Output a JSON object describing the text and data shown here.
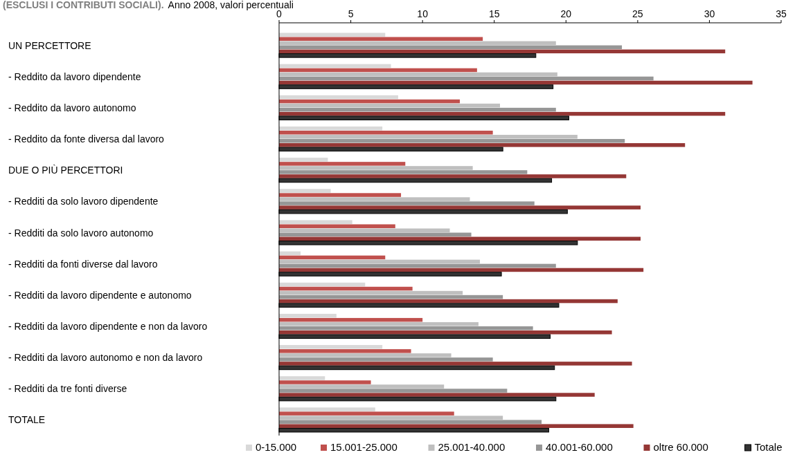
{
  "chart_data": {
    "type": "bar",
    "orientation": "horizontal",
    "title": "(ESCLUSI I CONTRIBUTI SOCIALI).",
    "subtitle": "Anno 2008, valori percentuali",
    "categories": [
      "UN PERCETTORE",
      "- Reddito da lavoro dipendente",
      "- Reddito da lavoro autonomo",
      "- Reddito da fonte diversa dal lavoro",
      "DUE O PIÙ PERCETTORI",
      "- Redditi da solo lavoro dipendente",
      "- Redditi da solo lavoro autonomo",
      "- Redditi da fonti diverse dal lavoro",
      "- Redditi da lavoro dipendente e autonomo",
      "- Redditi da lavoro dipendente e non da lavoro",
      "- Redditi da lavoro autonomo e non da lavoro",
      "- Redditi da tre fonti diverse",
      "TOTALE"
    ],
    "series": [
      {
        "name": "0-15.000",
        "color": "#d9d9d9",
        "values": [
          7.4,
          7.8,
          8.3,
          7.2,
          3.4,
          3.6,
          5.1,
          1.5,
          6.0,
          4.0,
          7.2,
          3.2,
          6.7
        ]
      },
      {
        "name": "15.001-25.000",
        "color": "#c0504d",
        "values": [
          14.2,
          13.8,
          12.6,
          14.9,
          8.8,
          8.5,
          8.1,
          7.4,
          9.3,
          10.0,
          9.2,
          6.4,
          12.2
        ]
      },
      {
        "name": "25.001-40.000",
        "color": "#bfbfbf",
        "values": [
          19.3,
          19.4,
          15.4,
          20.8,
          13.5,
          13.3,
          11.9,
          14.0,
          12.8,
          13.9,
          12.0,
          11.5,
          15.6
        ]
      },
      {
        "name": "40.001-60.000",
        "color": "#969696",
        "values": [
          23.9,
          26.1,
          19.3,
          24.1,
          17.3,
          17.8,
          13.4,
          19.3,
          15.6,
          17.7,
          14.9,
          15.9,
          18.3
        ]
      },
      {
        "name": "oltre 60.000",
        "color": "#953735",
        "values": [
          31.1,
          33.0,
          31.1,
          28.3,
          24.2,
          25.2,
          25.2,
          25.4,
          23.6,
          23.2,
          24.6,
          22.0,
          24.7
        ]
      },
      {
        "name": "Totale",
        "color": "#333333",
        "values": [
          17.9,
          19.1,
          20.2,
          15.6,
          19.0,
          20.1,
          20.8,
          15.5,
          19.5,
          18.9,
          19.2,
          19.3,
          18.8
        ]
      }
    ],
    "xlim": [
      0,
      35
    ],
    "xticks": [
      0,
      5,
      10,
      15,
      20,
      25,
      30,
      35
    ],
    "legend": "bottom",
    "grid": false
  }
}
